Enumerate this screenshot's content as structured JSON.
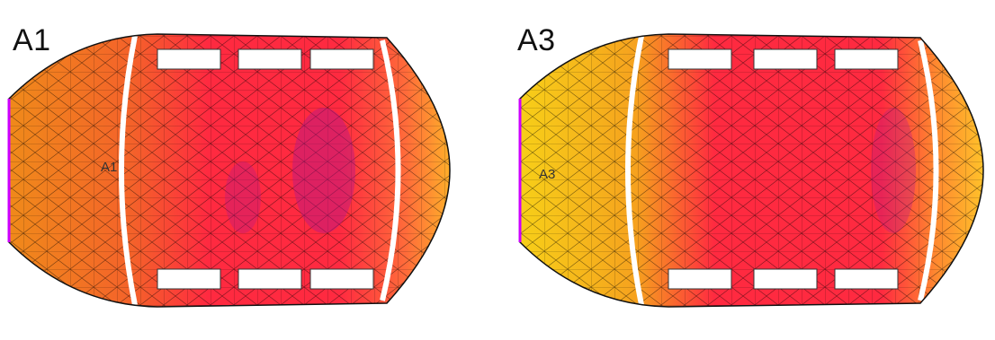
{
  "panels": [
    {
      "id": "A1",
      "title": "A1",
      "marker": "A1",
      "colors": {
        "left": "#f08a1a",
        "center": "#ff2a40",
        "right": "#ffae2a",
        "hot": "#b4178a"
      }
    },
    {
      "id": "A3",
      "title": "A3",
      "marker": "A3",
      "colors": {
        "left": "#f7cf18",
        "center": "#ff2a40",
        "right": "#ffc12a",
        "hot": "#b4178a"
      }
    }
  ]
}
